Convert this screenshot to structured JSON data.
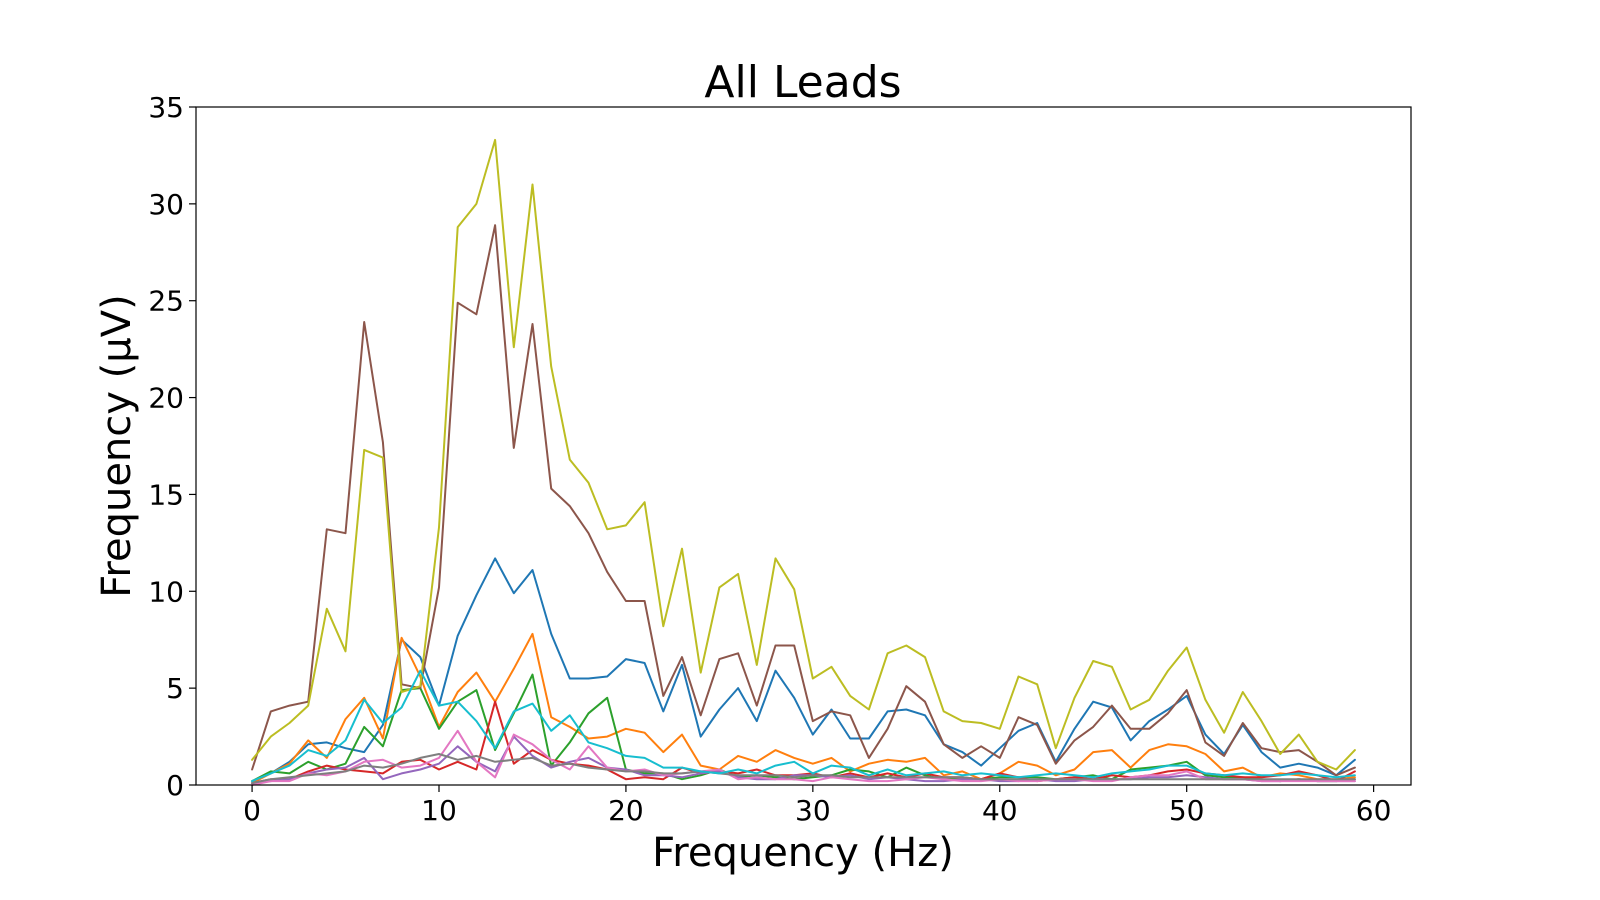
{
  "chart_data": {
    "type": "line",
    "title": "All Leads",
    "xlabel": "Frequency (Hz)",
    "ylabel": "Frequency (µV)",
    "xlim": [
      -3,
      62
    ],
    "ylim": [
      0,
      35
    ],
    "xticks": [
      0,
      10,
      20,
      30,
      40,
      50,
      60
    ],
    "yticks": [
      0,
      5,
      10,
      15,
      20,
      25,
      30,
      35
    ],
    "grid": false,
    "legend": "none",
    "x": [
      0,
      1,
      2,
      3,
      4,
      5,
      6,
      7,
      8,
      9,
      10,
      11,
      12,
      13,
      14,
      15,
      16,
      17,
      18,
      19,
      20,
      21,
      22,
      23,
      24,
      25,
      26,
      27,
      28,
      29,
      30,
      31,
      32,
      33,
      34,
      35,
      36,
      37,
      38,
      39,
      40,
      41,
      42,
      43,
      44,
      45,
      46,
      47,
      48,
      49,
      50,
      51,
      52,
      53,
      54,
      55,
      56,
      57,
      58,
      59
    ],
    "series": [
      {
        "color": "#1f77b4",
        "values": [
          0.2,
          0.6,
          1.2,
          2.1,
          2.2,
          1.9,
          1.7,
          3.1,
          7.5,
          6.6,
          4.1,
          7.7,
          9.8,
          11.7,
          9.9,
          11.1,
          7.8,
          5.5,
          5.5,
          5.6,
          6.5,
          6.3,
          3.8,
          6.2,
          2.5,
          3.9,
          5.0,
          3.3,
          5.9,
          4.5,
          2.6,
          3.9,
          2.4,
          2.4,
          3.8,
          3.9,
          3.6,
          2.1,
          1.7,
          1.0,
          1.9,
          2.8,
          3.2,
          1.2,
          2.9,
          4.3,
          4.0,
          2.3,
          3.3,
          3.9,
          4.6,
          2.6,
          1.6,
          3.1,
          1.7,
          0.9,
          1.1,
          0.9,
          0.5,
          1.3
        ]
      },
      {
        "color": "#ff7f0e",
        "values": [
          0.1,
          0.6,
          1.1,
          2.3,
          1.4,
          3.4,
          4.5,
          2.4,
          7.6,
          5.6,
          3.0,
          4.8,
          5.8,
          4.3,
          6.0,
          7.8,
          3.5,
          3.0,
          2.4,
          2.5,
          2.9,
          2.7,
          1.7,
          2.6,
          1.0,
          0.8,
          1.5,
          1.2,
          1.8,
          1.4,
          1.1,
          1.4,
          0.7,
          1.1,
          1.3,
          1.2,
          1.4,
          0.5,
          0.7,
          0.3,
          0.6,
          1.2,
          1.0,
          0.5,
          0.8,
          1.7,
          1.8,
          0.9,
          1.8,
          2.1,
          2.0,
          1.6,
          0.7,
          0.9,
          0.4,
          0.6,
          0.5,
          0.3,
          0.3,
          0.4
        ]
      },
      {
        "color": "#2ca02c",
        "values": [
          0.2,
          0.7,
          0.6,
          1.2,
          0.8,
          1.1,
          3.0,
          2.0,
          4.9,
          5.0,
          2.9,
          4.3,
          4.9,
          1.8,
          3.7,
          5.7,
          1.0,
          2.2,
          3.7,
          4.5,
          0.8,
          0.6,
          0.6,
          0.3,
          0.5,
          0.8,
          0.4,
          0.5,
          0.4,
          0.3,
          0.4,
          0.5,
          0.8,
          0.7,
          0.4,
          0.9,
          0.5,
          0.3,
          0.3,
          0.3,
          0.4,
          0.4,
          0.4,
          0.3,
          0.4,
          0.5,
          0.3,
          0.8,
          0.9,
          1.0,
          1.2,
          0.5,
          0.4,
          0.4,
          0.3,
          0.2,
          0.3,
          0.2,
          0.2,
          0.3
        ]
      },
      {
        "color": "#d62728",
        "values": [
          0.1,
          0.3,
          0.3,
          0.7,
          1.0,
          0.8,
          0.7,
          0.6,
          1.2,
          1.3,
          0.8,
          1.2,
          0.8,
          4.3,
          1.1,
          1.8,
          1.3,
          1.1,
          1.0,
          0.8,
          0.3,
          0.4,
          0.3,
          0.9,
          0.6,
          0.7,
          0.6,
          0.8,
          0.5,
          0.5,
          0.6,
          0.4,
          0.6,
          0.4,
          0.6,
          0.4,
          0.6,
          0.4,
          0.4,
          0.3,
          0.6,
          0.4,
          0.2,
          0.3,
          0.4,
          0.3,
          0.5,
          0.4,
          0.5,
          0.7,
          0.8,
          0.6,
          0.5,
          0.4,
          0.4,
          0.5,
          0.7,
          0.5,
          0.2,
          0.7
        ]
      },
      {
        "color": "#9467bd",
        "values": [
          0.1,
          0.2,
          0.3,
          0.6,
          0.8,
          0.9,
          1.4,
          0.3,
          0.6,
          0.8,
          1.1,
          2.0,
          1.2,
          0.7,
          2.5,
          1.5,
          0.9,
          1.2,
          1.4,
          0.9,
          0.8,
          0.5,
          0.5,
          0.4,
          0.6,
          0.7,
          0.4,
          0.3,
          0.3,
          0.5,
          0.5,
          0.4,
          0.5,
          0.3,
          0.4,
          0.3,
          0.2,
          0.2,
          0.3,
          0.3,
          0.2,
          0.2,
          0.3,
          0.2,
          0.2,
          0.3,
          0.3,
          0.3,
          0.4,
          0.4,
          0.5,
          0.4,
          0.3,
          0.3,
          0.2,
          0.2,
          0.3,
          0.2,
          0.2,
          0.2
        ]
      },
      {
        "color": "#8c564b",
        "values": [
          0.8,
          3.8,
          4.1,
          4.3,
          13.2,
          13.0,
          23.9,
          17.7,
          5.2,
          5.0,
          10.2,
          24.9,
          24.3,
          28.9,
          17.4,
          23.8,
          15.3,
          14.4,
          13.0,
          11.0,
          9.5,
          9.5,
          4.6,
          6.6,
          3.6,
          6.5,
          6.8,
          4.1,
          7.2,
          7.2,
          3.3,
          3.8,
          3.6,
          1.4,
          2.9,
          5.1,
          4.3,
          2.1,
          1.4,
          2.0,
          1.4,
          3.5,
          3.1,
          1.1,
          2.3,
          3.0,
          4.1,
          2.9,
          2.9,
          3.7,
          4.9,
          2.2,
          1.5,
          3.2,
          1.9,
          1.7,
          1.8,
          1.2,
          0.5,
          0.9
        ]
      },
      {
        "color": "#e377c2",
        "values": [
          0.0,
          0.2,
          0.2,
          0.6,
          0.5,
          0.7,
          1.2,
          1.3,
          0.9,
          1.0,
          1.4,
          2.8,
          1.2,
          0.4,
          2.6,
          2.1,
          1.3,
          0.8,
          2.0,
          0.9,
          0.7,
          0.8,
          0.5,
          0.6,
          0.7,
          0.8,
          0.3,
          0.4,
          0.3,
          0.3,
          0.2,
          0.4,
          0.3,
          0.2,
          0.2,
          0.3,
          0.4,
          0.3,
          0.2,
          0.2,
          0.3,
          0.2,
          0.2,
          0.3,
          0.3,
          0.2,
          0.2,
          0.4,
          0.5,
          0.5,
          0.7,
          0.3,
          0.3,
          0.3,
          0.2,
          0.2,
          0.2,
          0.2,
          0.2,
          0.2
        ]
      },
      {
        "color": "#7f7f7f",
        "values": [
          0.1,
          0.3,
          0.4,
          0.5,
          0.6,
          0.7,
          1.0,
          0.9,
          1.1,
          1.4,
          1.6,
          1.3,
          1.5,
          1.2,
          1.3,
          1.4,
          1.0,
          1.1,
          0.9,
          0.8,
          0.7,
          0.7,
          0.6,
          0.6,
          0.7,
          0.6,
          0.5,
          0.5,
          0.5,
          0.4,
          0.5,
          0.5,
          0.4,
          0.4,
          0.4,
          0.4,
          0.4,
          0.4,
          0.4,
          0.3,
          0.3,
          0.3,
          0.3,
          0.3,
          0.3,
          0.3,
          0.3,
          0.3,
          0.3,
          0.3,
          0.3,
          0.3,
          0.3,
          0.3,
          0.3,
          0.3,
          0.3,
          0.3,
          0.3,
          0.3
        ]
      },
      {
        "color": "#bcbd22",
        "values": [
          1.3,
          2.5,
          3.2,
          4.1,
          9.1,
          6.9,
          17.3,
          16.9,
          4.8,
          5.1,
          13.3,
          28.8,
          30.0,
          33.3,
          22.6,
          31.0,
          21.6,
          16.8,
          15.6,
          13.2,
          13.4,
          14.6,
          8.2,
          12.2,
          5.8,
          10.2,
          10.9,
          6.2,
          11.7,
          10.1,
          5.5,
          6.1,
          4.6,
          3.9,
          6.8,
          7.2,
          6.6,
          3.8,
          3.3,
          3.2,
          2.9,
          5.6,
          5.2,
          1.9,
          4.5,
          6.4,
          6.1,
          3.9,
          4.4,
          5.9,
          7.1,
          4.4,
          2.7,
          4.8,
          3.3,
          1.6,
          2.6,
          1.2,
          0.8,
          1.8
        ]
      },
      {
        "color": "#17becf",
        "values": [
          0.2,
          0.6,
          1.0,
          1.8,
          1.5,
          2.3,
          4.4,
          3.2,
          4.0,
          5.9,
          4.1,
          4.3,
          3.3,
          1.9,
          3.8,
          4.2,
          2.8,
          3.6,
          2.2,
          1.9,
          1.5,
          1.4,
          0.9,
          0.9,
          0.7,
          0.6,
          0.8,
          0.6,
          1.0,
          1.2,
          0.6,
          1.0,
          0.9,
          0.5,
          0.8,
          0.5,
          0.6,
          0.7,
          0.5,
          0.6,
          0.5,
          0.4,
          0.5,
          0.6,
          0.5,
          0.4,
          0.6,
          0.7,
          0.8,
          1.0,
          1.0,
          0.6,
          0.5,
          0.6,
          0.5,
          0.5,
          0.6,
          0.5,
          0.4,
          0.5
        ]
      }
    ]
  }
}
